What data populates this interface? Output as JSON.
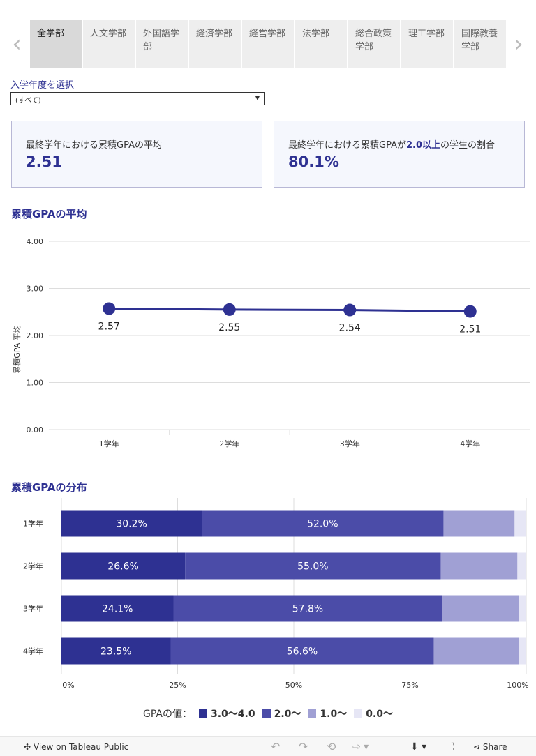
{
  "tabs": {
    "items": [
      {
        "label": "全学部",
        "active": true
      },
      {
        "label": "人文学部"
      },
      {
        "label": "外国語学部"
      },
      {
        "label": "経済学部"
      },
      {
        "label": "経営学部"
      },
      {
        "label": "法学部"
      },
      {
        "label": "総合政策学部"
      },
      {
        "label": "理工学部"
      },
      {
        "label": "国際教養学部"
      }
    ],
    "prev_icon": "chevron-left-icon",
    "next_icon": "chevron-right-icon"
  },
  "filter": {
    "label": "入学年度を選択",
    "selected": "(すべて)"
  },
  "kpis": [
    {
      "label_pre": "最終学年における累積GPAの平均",
      "label_em": "",
      "label_post": "",
      "value": "2.51"
    },
    {
      "label_pre": "最終学年における累積GPAが",
      "label_em": "2.0以上",
      "label_post": "の学生の割合",
      "value": "80.1%"
    }
  ],
  "line_section": {
    "title": "累積GPAの平均"
  },
  "bar_section": {
    "title": "累積GPAの分布"
  },
  "chart_data": [
    {
      "type": "line",
      "categories": [
        "1学年",
        "2学年",
        "3学年",
        "4学年"
      ],
      "values": [
        2.57,
        2.55,
        2.54,
        2.51
      ],
      "data_labels": [
        "2.57",
        "2.55",
        "2.54",
        "2.51"
      ],
      "ylabel": "累積GPA 平均",
      "ylim": [
        0,
        4
      ],
      "yticks": [
        "0.00",
        "1.00",
        "2.00",
        "3.00",
        "4.00"
      ],
      "color": "#2e3192",
      "grid": true
    },
    {
      "type": "bar",
      "orientation": "horizontal",
      "stacked": true,
      "categories": [
        "1学年",
        "2学年",
        "3学年",
        "4学年"
      ],
      "series": [
        {
          "name": "3.0〜4.0",
          "values": [
            30.2,
            26.6,
            24.1,
            23.5
          ],
          "color": "#2e3192"
        },
        {
          "name": "2.0〜",
          "values": [
            52.0,
            55.0,
            57.8,
            56.6
          ],
          "color": "#4b4ca8"
        },
        {
          "name": "1.0〜",
          "values": [
            15.3,
            16.5,
            16.5,
            18.3
          ],
          "color": "#a0a0d4"
        },
        {
          "name": "0.0〜",
          "values": [
            2.5,
            1.9,
            1.6,
            1.6
          ],
          "color": "#e6e6f5"
        }
      ],
      "data_labels": [
        [
          "30.2%",
          "52.0%"
        ],
        [
          "26.6%",
          "55.0%"
        ],
        [
          "24.1%",
          "57.8%"
        ],
        [
          "23.5%",
          "56.6%"
        ]
      ],
      "xticks": [
        "0%",
        "25%",
        "50%",
        "75%",
        "100%"
      ],
      "xlim": [
        0,
        100
      ],
      "legend_title": "GPAの値：",
      "legend_position": "bottom"
    }
  ],
  "footer": {
    "view_label": "View on Tableau Public",
    "share_label": "Share"
  }
}
